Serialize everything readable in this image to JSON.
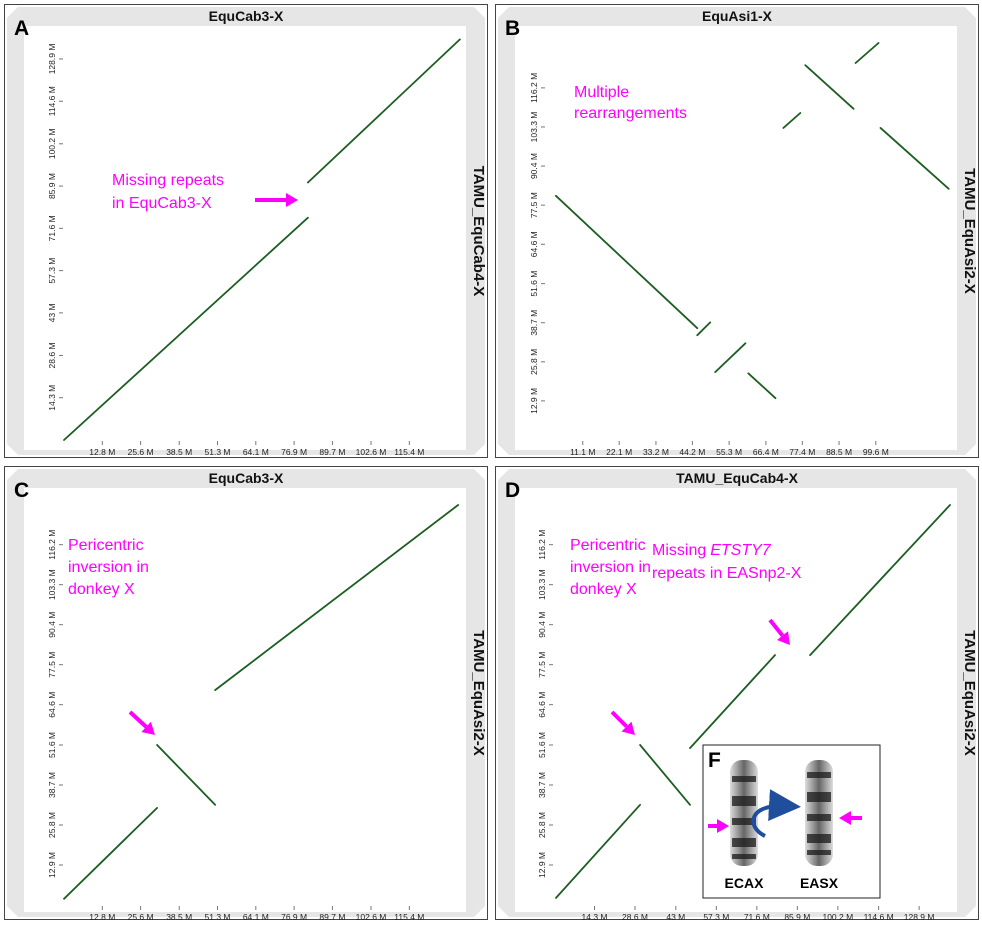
{
  "chart_data": [
    {
      "type": "line",
      "panel_label": "A",
      "title": "EquCab3-X",
      "y_label": "TAMU_EquCab4-X",
      "x": [
        0,
        81.5,
        null,
        81.5,
        132.3
      ],
      "values": [
        0,
        75.2,
        null,
        87.1,
        135.5
      ],
      "color": "#1b5e20",
      "xlim": [
        0,
        133
      ],
      "ylim": [
        0,
        137
      ],
      "xticks": [
        {
          "value": 12.8,
          "label": "12.8 M"
        },
        {
          "value": 25.6,
          "label": "25.6 M"
        },
        {
          "value": 38.5,
          "label": "38.5 M"
        },
        {
          "value": 51.3,
          "label": "51.3 M"
        },
        {
          "value": 64.1,
          "label": "64.1 M"
        },
        {
          "value": 76.9,
          "label": "76.9 M"
        },
        {
          "value": 89.7,
          "label": "89.7 M"
        },
        {
          "value": 102.6,
          "label": "102.6 M"
        },
        {
          "value": 115.4,
          "label": "115.4 M"
        }
      ],
      "yticks": [
        {
          "value": 14.3,
          "label": "14.3 M"
        },
        {
          "value": 28.6,
          "label": "28.6 M"
        },
        {
          "value": 43,
          "label": "43 M"
        },
        {
          "value": 57.3,
          "label": "57.3 M"
        },
        {
          "value": 71.6,
          "label": "71.6 M"
        },
        {
          "value": 85.9,
          "label": "85.9 M"
        },
        {
          "value": 100.2,
          "label": "100.2 M"
        },
        {
          "value": 114.6,
          "label": "114.6 M"
        },
        {
          "value": 128.9,
          "label": "128.9 M"
        }
      ],
      "annotations": [
        {
          "lines": [
            [
              "Missing repeats"
            ],
            [
              "in EquCab3-X"
            ]
          ],
          "arrow": true
        }
      ]
    },
    {
      "type": "line",
      "panel_label": "B",
      "title": "EquAsi1-X",
      "y_label": "TAMU_EquAsi2-X",
      "x": [
        3.0,
        45.7,
        null,
        45.7,
        49.6,
        null,
        51.1,
        60.2,
        null,
        61.1,
        69.3,
        null,
        71.7,
        76.8,
        null,
        78.3,
        92.9,
        null,
        93.5,
        100.4,
        null,
        101.0,
        121.6
      ],
      "values": [
        80.6,
        36.9,
        null,
        34.6,
        38.8,
        null,
        22.4,
        31.9,
        null,
        22.0,
        13.8,
        null,
        103.0,
        107.9,
        null,
        123.7,
        109.3,
        null,
        124.4,
        131.0,
        null,
        103.0,
        82.9
      ],
      "color": "#1b5e20",
      "xlim": [
        0,
        122
      ],
      "ylim": [
        0,
        132
      ],
      "xticks": [
        {
          "value": 11.1,
          "label": "11.1 M"
        },
        {
          "value": 22.1,
          "label": "22.1 M"
        },
        {
          "value": 33.2,
          "label": "33.2 M"
        },
        {
          "value": 44.2,
          "label": "44.2 M"
        },
        {
          "value": 55.3,
          "label": "55.3 M"
        },
        {
          "value": 66.4,
          "label": "66.4 M"
        },
        {
          "value": 77.4,
          "label": "77.4 M"
        },
        {
          "value": 88.5,
          "label": "88.5 M"
        },
        {
          "value": 99.6,
          "label": "99.6 M"
        }
      ],
      "yticks": [
        {
          "value": 12.9,
          "label": "12.9 M"
        },
        {
          "value": 25.8,
          "label": "25.8 M"
        },
        {
          "value": 38.7,
          "label": "38.7 M"
        },
        {
          "value": 51.6,
          "label": "51.6 M"
        },
        {
          "value": 64.6,
          "label": "64.6 M"
        },
        {
          "value": 77.5,
          "label": "77.5 M"
        },
        {
          "value": 90.4,
          "label": "90.4 M"
        },
        {
          "value": 103.3,
          "label": "103.3 M"
        },
        {
          "value": 116.2,
          "label": "116.2 M"
        }
      ],
      "annotations": [
        {
          "lines": [
            [
              "Multiple"
            ],
            [
              "rearrangements"
            ]
          ],
          "arrow": false
        }
      ]
    },
    {
      "type": "line",
      "panel_label": "C",
      "title": "EquCab3-X",
      "y_label": "TAMU_EquAsi2-X",
      "x": [
        0,
        31.1,
        null,
        31.1,
        50.5,
        null,
        50.5,
        131.7
      ],
      "values": [
        2,
        31.3,
        null,
        51.6,
        32.3,
        null,
        69.3,
        129
      ],
      "color": "#1b5e20",
      "xlim": [
        0,
        133
      ],
      "ylim": [
        0,
        129
      ],
      "xticks": [
        {
          "value": 12.8,
          "label": "12.8 M"
        },
        {
          "value": 25.6,
          "label": "25.6 M"
        },
        {
          "value": 38.5,
          "label": "38.5 M"
        },
        {
          "value": 51.3,
          "label": "51.3 M"
        },
        {
          "value": 64.1,
          "label": "64.1 M"
        },
        {
          "value": 76.9,
          "label": "76.9 M"
        },
        {
          "value": 89.7,
          "label": "89.7 M"
        },
        {
          "value": 102.6,
          "label": "102.6 M"
        },
        {
          "value": 115.4,
          "label": "115.4 M"
        }
      ],
      "yticks": [
        {
          "value": 12.9,
          "label": "12.9 M"
        },
        {
          "value": 25.8,
          "label": "25.8 M"
        },
        {
          "value": 38.7,
          "label": "38.7 M"
        },
        {
          "value": 51.6,
          "label": "51.6 M"
        },
        {
          "value": 64.6,
          "label": "64.6 M"
        },
        {
          "value": 77.5,
          "label": "77.5 M"
        },
        {
          "value": 90.4,
          "label": "90.4 M"
        },
        {
          "value": 103.3,
          "label": "103.3 M"
        },
        {
          "value": 116.2,
          "label": "116.2 M"
        }
      ],
      "annotations": [
        {
          "lines": [
            [
              "Pericentric"
            ],
            [
              "inversion in"
            ],
            [
              "donkey X"
            ]
          ],
          "arrow": true
        }
      ]
    },
    {
      "type": "line",
      "panel_label": "D",
      "title": "TAMU_EquCab4-X",
      "y_label": "TAMU_EquAsi2-X",
      "x": [
        0.7,
        30.4,
        null,
        30.4,
        48.0,
        null,
        48.0,
        78.0,
        null,
        90.4,
        139.8
      ],
      "values": [
        2.3,
        32.3,
        null,
        51.6,
        32.3,
        null,
        50.6,
        80.6,
        null,
        80.6,
        129
      ],
      "color": "#1b5e20",
      "xlim": [
        0,
        140.5
      ],
      "ylim": [
        0,
        129
      ],
      "xticks": [
        {
          "value": 14.3,
          "label": "14.3 M"
        },
        {
          "value": 28.6,
          "label": "28.6 M"
        },
        {
          "value": 43,
          "label": "43 M"
        },
        {
          "value": 57.3,
          "label": "57.3 M"
        },
        {
          "value": 71.6,
          "label": "71.6 M"
        },
        {
          "value": 85.9,
          "label": "85.9 M"
        },
        {
          "value": 100.2,
          "label": "100.2 M"
        },
        {
          "value": 114.6,
          "label": "114.6 M"
        },
        {
          "value": 128.9,
          "label": "128.9 M"
        }
      ],
      "yticks": [
        {
          "value": 12.9,
          "label": "12.9 M"
        },
        {
          "value": 25.8,
          "label": "25.8 M"
        },
        {
          "value": 38.7,
          "label": "38.7 M"
        },
        {
          "value": 51.6,
          "label": "51.6 M"
        },
        {
          "value": 64.6,
          "label": "64.6 M"
        },
        {
          "value": 77.5,
          "label": "77.5 M"
        },
        {
          "value": 90.4,
          "label": "90.4 M"
        },
        {
          "value": 103.3,
          "label": "103.3 M"
        },
        {
          "value": 116.2,
          "label": "116.2 M"
        }
      ],
      "annotations": [
        {
          "lines": [
            [
              "Pericentric"
            ],
            [
              "inversion in"
            ],
            [
              "donkey X"
            ]
          ],
          "arrow": true
        },
        {
          "lines": [
            [
              "Missing",
              "ETSTY7"
            ],
            [
              "repeats in EASnp2-X"
            ]
          ],
          "arrow": true
        }
      ],
      "inset": {
        "label": "F",
        "chromosomes": [
          "ECAX",
          "EASX"
        ]
      }
    }
  ]
}
